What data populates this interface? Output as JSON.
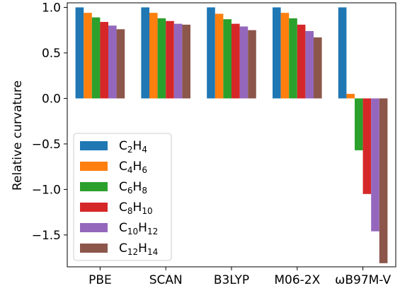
{
  "chart_data": {
    "type": "bar",
    "ylabel": "Relative curvature",
    "xlabel": "",
    "title": "",
    "categories": [
      "PBE",
      "SCAN",
      "B3LYP",
      "M06-2X",
      "ωB97M-V"
    ],
    "ylim": [
      -1.85,
      1.05
    ],
    "yticks": [
      1.0,
      0.5,
      0.0,
      -0.5,
      -1.0,
      -1.5
    ],
    "ytick_labels": [
      "1.0",
      "0.5",
      "0.0",
      "−0.5",
      "−1.0",
      "−1.5"
    ],
    "grid": false,
    "legend_position": "lower-left",
    "series": [
      {
        "name": "C2H4",
        "label_base": "C",
        "sub1": "2",
        "mid": "H",
        "sub2": "4",
        "color": "#1f77b4",
        "values": [
          1.0,
          1.0,
          1.0,
          1.0,
          1.0
        ]
      },
      {
        "name": "C4H6",
        "label_base": "C",
        "sub1": "4",
        "mid": "H",
        "sub2": "6",
        "color": "#ff7f0e",
        "values": [
          0.94,
          0.94,
          0.93,
          0.94,
          0.05
        ]
      },
      {
        "name": "C6H8",
        "label_base": "C",
        "sub1": "6",
        "mid": "H",
        "sub2": "8",
        "color": "#2ca02c",
        "values": [
          0.89,
          0.88,
          0.87,
          0.88,
          -0.57
        ]
      },
      {
        "name": "C8H10",
        "label_base": "C",
        "sub1": "8",
        "mid": "H",
        "sub2": "10",
        "color": "#d62728",
        "values": [
          0.84,
          0.85,
          0.82,
          0.81,
          -1.05
        ]
      },
      {
        "name": "C10H12",
        "label_base": "C",
        "sub1": "10",
        "mid": "H",
        "sub2": "12",
        "color": "#9467bd",
        "values": [
          0.8,
          0.82,
          0.79,
          0.74,
          -1.46
        ]
      },
      {
        "name": "C12H14",
        "label_base": "C",
        "sub1": "12",
        "mid": "H",
        "sub2": "14",
        "color": "#8c564b",
        "values": [
          0.76,
          0.81,
          0.75,
          0.67,
          -1.81
        ]
      }
    ]
  }
}
